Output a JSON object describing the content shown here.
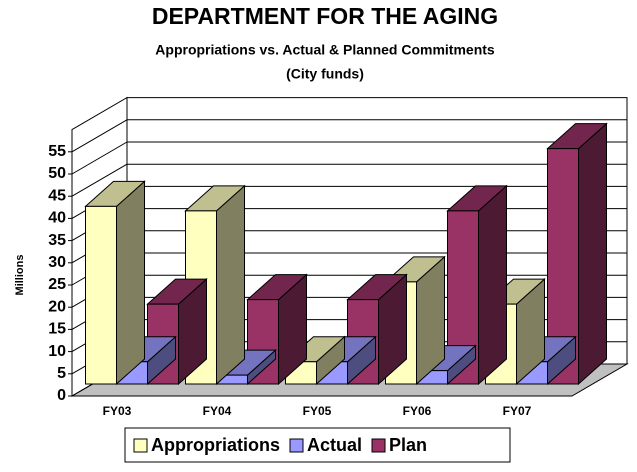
{
  "chart_data": {
    "type": "bar",
    "title": "DEPARTMENT FOR THE AGING",
    "subtitle": [
      "Appropriations vs. Actual & Planned Commitments",
      "(City funds)"
    ],
    "y_label": "Millions",
    "categories": [
      "FY03",
      "FY04",
      "FY05",
      "FY06",
      "FY07"
    ],
    "series": [
      {
        "name": "Appropriations",
        "color": "#ffffc0",
        "values": [
          40,
          39,
          5,
          23,
          18
        ]
      },
      {
        "name": "Actual",
        "color": "#9999ff",
        "values": [
          5,
          2,
          5,
          3,
          5
        ]
      },
      {
        "name": "Plan",
        "color": "#993366",
        "values": [
          18,
          19,
          19,
          39,
          53
        ]
      }
    ],
    "ylim": [
      0,
      60
    ],
    "yticks": [
      0,
      5,
      10,
      15,
      20,
      25,
      30,
      35,
      40,
      45,
      50,
      55
    ],
    "grid": true,
    "legend": "bottom"
  }
}
